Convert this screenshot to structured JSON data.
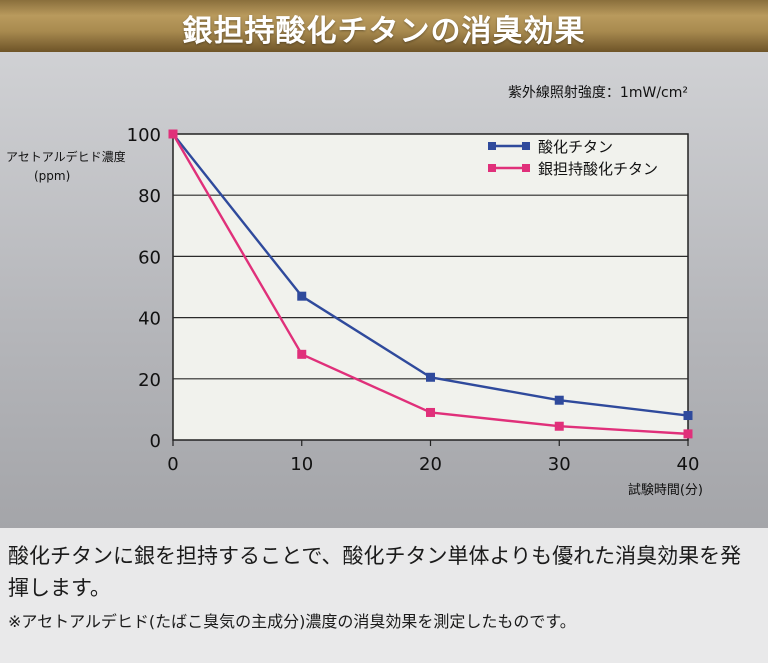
{
  "title": "銀担持酸化チタンの消臭効果",
  "caption": {
    "main": "酸化チタンに銀を担持することで、酸化チタン単体よりも優れた消臭効果を発揮します。",
    "note": "※アセトアルデヒド(たばこ臭気の主成分)濃度の消臭効果を測定したものです。"
  },
  "chart_data": {
    "type": "line",
    "annotation": "紫外線照射強度：1mW/cm²",
    "ylabel": "アセトアルデヒド濃度",
    "ylabel_unit": "(ppm)",
    "xlabel": "試験時間(分)",
    "x": [
      0,
      10,
      20,
      30,
      40
    ],
    "xlim": [
      0,
      40
    ],
    "ylim": [
      0,
      100
    ],
    "xticks": [
      "0",
      "10",
      "20",
      "30",
      "40"
    ],
    "yticks": [
      "0",
      "20",
      "40",
      "60",
      "80",
      "100"
    ],
    "grid": true,
    "legend_position": "top-right",
    "series": [
      {
        "name": "酸化チタン",
        "color": "#2f4a9c",
        "values": [
          100,
          47,
          20.5,
          13,
          8
        ]
      },
      {
        "name": "銀担持酸化チタン",
        "color": "#e0307a",
        "values": [
          100,
          28,
          9,
          4.5,
          2
        ]
      }
    ]
  }
}
